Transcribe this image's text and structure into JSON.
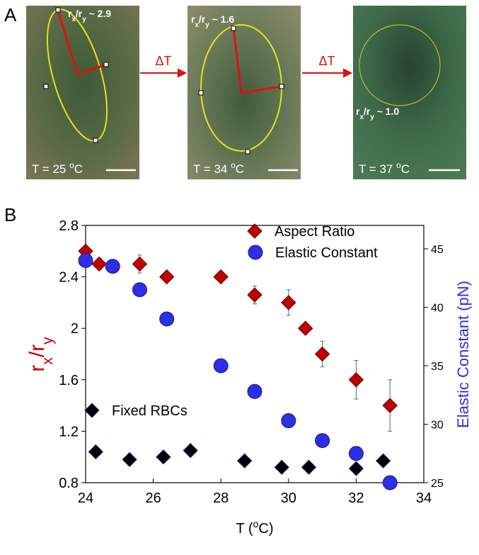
{
  "panel_a": {
    "label": "A",
    "images": [
      {
        "ratio": [
          "r",
          "x",
          "/r",
          "y",
          " ~ 2.9"
        ],
        "temp": [
          "T = 25 ",
          "o",
          "C"
        ]
      },
      {
        "ratio": [
          "r",
          "x",
          "/r",
          "y",
          " ~ 1.6"
        ],
        "temp": [
          "T = 34 ",
          "o",
          "C"
        ]
      },
      {
        "ratio": [
          "r",
          "x",
          "/r",
          "y",
          " ~ 1.0"
        ],
        "temp": [
          "T = 37 ",
          "o",
          "C"
        ]
      }
    ],
    "arrows": [
      "ΔT",
      "ΔT"
    ]
  },
  "chart_data": {
    "type": "scatter",
    "panel_label": "B",
    "x_label": [
      "T (",
      "o",
      "C)"
    ],
    "y_label": [
      "r",
      "x",
      "/r",
      "y"
    ],
    "y2_label": "Elastic Constant (pN)",
    "xlim": [
      24,
      34
    ],
    "xticks": [
      24,
      26,
      28,
      30,
      32,
      34
    ],
    "ylim": [
      0.8,
      2.8
    ],
    "yticks": [
      0.8,
      1.2,
      1.6,
      2,
      2.4,
      2.8
    ],
    "y2lim": [
      25,
      47
    ],
    "y2ticks": [
      25,
      30,
      35,
      40,
      45
    ],
    "series": [
      {
        "name": "Aspect Ratio",
        "color": "#c00000",
        "marker": "diamond",
        "axis": "y",
        "x": [
          24,
          24.4,
          25.6,
          26.4,
          28,
          29,
          30,
          30.5,
          31,
          32,
          33
        ],
        "values": [
          2.6,
          2.5,
          2.5,
          2.4,
          2.4,
          2.26,
          2.2,
          2.0,
          1.8,
          1.6,
          1.4
        ],
        "errors": [
          0.02,
          0.03,
          0.07,
          0.02,
          0.02,
          0.07,
          0.1,
          0.03,
          0.1,
          0.15,
          0.2
        ]
      },
      {
        "name": "Elastic Constant",
        "color": "#2e2ee6",
        "marker": "circle",
        "axis": "y2",
        "x": [
          24,
          24.8,
          25.6,
          26.4,
          28,
          29,
          30,
          31,
          32,
          33
        ],
        "values": [
          44,
          43.5,
          41.5,
          39,
          35,
          32.8,
          30.3,
          28.6,
          27.5,
          25
        ]
      },
      {
        "name": "Fixed RBCs",
        "color": "#000000",
        "marker": "diamond",
        "axis": "y",
        "x": [
          24.3,
          25.3,
          26.3,
          27.1,
          28.7,
          29.8,
          30.6,
          32,
          32.8
        ],
        "values": [
          1.04,
          0.98,
          1.0,
          1.05,
          0.97,
          0.92,
          0.92,
          0.91,
          0.97
        ]
      }
    ]
  }
}
